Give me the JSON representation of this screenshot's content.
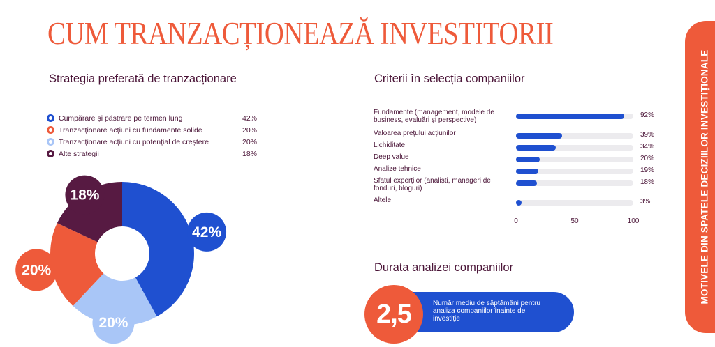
{
  "page": {
    "title": "CUM TRANZACȚIONEAZĂ INVESTITORII",
    "side_tab": "MOTIVELE DIN SPATELE DECIZIILOR INVESTIȚIONALE"
  },
  "colors": {
    "accent": "#ee5a3a",
    "blue": "#1f50d0",
    "light_blue": "#a9c6f7",
    "plum": "#571a42",
    "text": "#4a1437",
    "track": "#ecebee"
  },
  "chart_data": [
    {
      "type": "pie",
      "title": "Strategia preferată de tranzacționare",
      "donut": true,
      "slices": [
        {
          "label": "Cumpărare și păstrare pe termen lung",
          "value": 42,
          "display": "42%",
          "color": "#1f50d0",
          "marker": "#1f50d0"
        },
        {
          "label": "Tranzacționare acțiuni cu fundamente solide",
          "value": 20,
          "display": "20%",
          "color": "#a9c6f7",
          "marker": "#ee5a3a"
        },
        {
          "label": "Tranzacționare acțiuni cu potențial de creștere",
          "value": 20,
          "display": "20%",
          "color": "#ee5a3a",
          "marker": "#a9c6f7"
        },
        {
          "label": "Alte strategii",
          "value": 18,
          "display": "18%",
          "color": "#571a42",
          "marker": "#571a42"
        }
      ]
    },
    {
      "type": "bar",
      "orientation": "horizontal",
      "title": "Criterii în selecția companiilor",
      "categories": [
        "Fundamente (management, modele de business, evaluări și perspective)",
        "Valoarea prețului acțiunilor",
        "Lichiditate",
        "Deep value",
        "Analize tehnice",
        "Sfatul experților (analiști, manageri de fonduri, bloguri)",
        "Altele"
      ],
      "values": [
        92,
        39,
        34,
        20,
        19,
        18,
        3
      ],
      "value_labels": [
        "92%",
        "39%",
        "34%",
        "20%",
        "19%",
        "18%",
        "3%"
      ],
      "xlim": [
        0,
        100
      ],
      "xticks": [
        "0",
        "50",
        "100"
      ]
    }
  ],
  "duration": {
    "title": "Durata analizei companiilor",
    "value": "2,5",
    "description": "Număr mediu de săptămâni pentru analiza companiilor înainte de investiție"
  }
}
